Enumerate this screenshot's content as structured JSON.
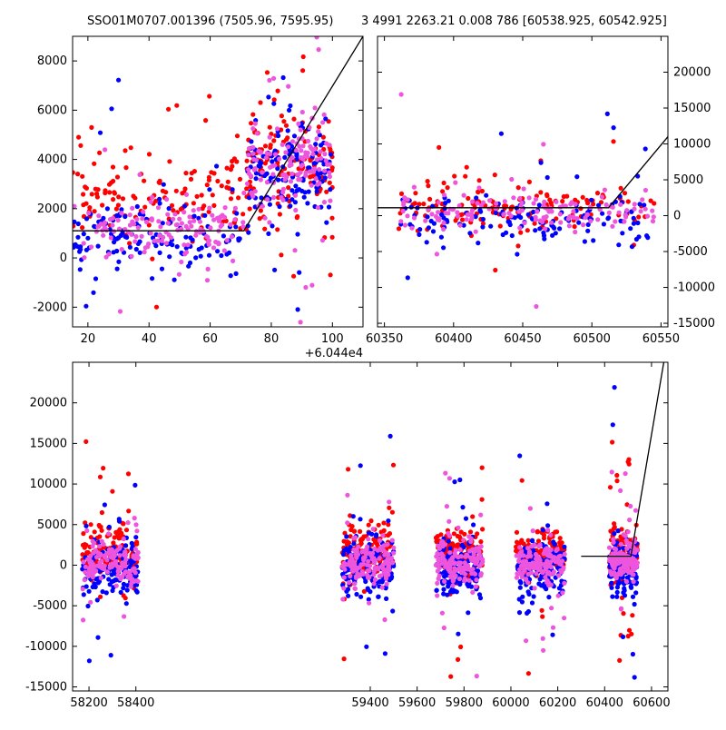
{
  "figure": {
    "title_left": "SSO01M0707.001396 (7505.96, 7595.95)",
    "title_right": "3 4991 2263.21 0.008 786 [60538.925, 60542.925]"
  },
  "colors": {
    "red": "#ff0000",
    "blue": "#0000ff",
    "pink": "#ee55dd",
    "line": "#000000"
  },
  "chart_data": [
    {
      "type": "scatter",
      "panel": "top-left",
      "xlim": [
        15,
        110
      ],
      "ylim": [
        -2800,
        9000
      ],
      "x_ticks": [
        20,
        40,
        60,
        80,
        100
      ],
      "y_ticks": [
        -2000,
        0,
        2000,
        4000,
        6000,
        8000
      ],
      "x_offset_label": "+6.044e4",
      "y_axis_side": "left",
      "model_line": [
        [
          15,
          1100
        ],
        [
          71,
          1100
        ],
        [
          110,
          9000
        ]
      ],
      "series": [
        {
          "color": "red",
          "clusters": [
            [
              15,
              72,
              2500,
              1700
            ],
            [
              72,
              100,
              4000,
              2300
            ]
          ]
        },
        {
          "color": "blue",
          "clusters": [
            [
              15,
              72,
              800,
              1500
            ],
            [
              72,
              100,
              3500,
              2000
            ]
          ]
        },
        {
          "color": "pink",
          "clusters": [
            [
              15,
              72,
              1200,
              1200
            ],
            [
              72,
              100,
              3800,
              2000
            ]
          ]
        }
      ]
    },
    {
      "type": "scatter",
      "panel": "top-right",
      "xlim": [
        60345,
        60555
      ],
      "ylim": [
        -15500,
        25000
      ],
      "x_ticks": [
        60350,
        60400,
        60450,
        60500,
        60550
      ],
      "y_ticks": [
        -15000,
        -10000,
        -5000,
        0,
        5000,
        10000,
        15000,
        20000
      ],
      "y_axis_side": "right",
      "model_line": [
        [
          60345,
          1100
        ],
        [
          60512,
          1100
        ],
        [
          60555,
          11000
        ]
      ],
      "series": [
        {
          "color": "red",
          "clusters": [
            [
              60360,
              60545,
              1500,
              3000
            ]
          ]
        },
        {
          "color": "blue",
          "clusters": [
            [
              60360,
              60545,
              -500,
              4000
            ]
          ]
        },
        {
          "color": "pink",
          "clusters": [
            [
              60360,
              60545,
              500,
              2500
            ]
          ]
        }
      ]
    },
    {
      "type": "scatter",
      "panel": "bottom",
      "xlim": [
        58130,
        60670
      ],
      "ylim": [
        -15500,
        25000
      ],
      "x_ticks": [
        58200,
        58400,
        59400,
        59600,
        59800,
        60000,
        60200,
        60400,
        60600
      ],
      "y_ticks": [
        -15000,
        -10000,
        -5000,
        0,
        5000,
        10000,
        15000,
        20000
      ],
      "y_axis_side": "left",
      "model_line": [
        [
          60300,
          1100
        ],
        [
          60512,
          1100
        ],
        [
          60670,
          28000
        ]
      ],
      "series": [
        {
          "color": "red",
          "clusters": [
            [
              58170,
              58410,
              1500,
              3000
            ],
            [
              59280,
              59500,
              1500,
              3000
            ],
            [
              59680,
              59880,
              1500,
              3000
            ],
            [
              60020,
              60230,
              1500,
              3000
            ],
            [
              60420,
              60540,
              1500,
              3000
            ]
          ]
        },
        {
          "color": "blue",
          "clusters": [
            [
              58170,
              58410,
              -500,
              3500
            ],
            [
              59280,
              59500,
              -500,
              3500
            ],
            [
              59680,
              59880,
              -500,
              3500
            ],
            [
              60020,
              60230,
              -500,
              3500
            ],
            [
              60420,
              60540,
              -500,
              3500
            ]
          ]
        },
        {
          "color": "pink",
          "clusters": [
            [
              58170,
              58410,
              300,
              2500
            ],
            [
              59280,
              59500,
              300,
              2500
            ],
            [
              59680,
              59880,
              300,
              2500
            ],
            [
              60020,
              60230,
              300,
              2500
            ],
            [
              60420,
              60540,
              300,
              2500
            ]
          ]
        }
      ]
    }
  ]
}
